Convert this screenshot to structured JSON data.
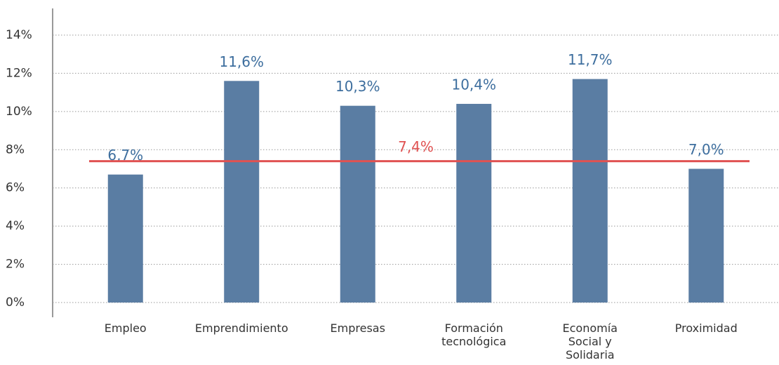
{
  "chart_data": {
    "type": "bar",
    "categories": [
      "Empleo",
      "Emprendimiento",
      "Empresas",
      "Formación tecnológica",
      "Economía Social y Solidaria",
      "Proximidad"
    ],
    "values": [
      6.7,
      11.6,
      10.3,
      10.4,
      11.7,
      7.0
    ],
    "value_labels": [
      "6,7%",
      "11,6%",
      "10,3%",
      "10,4%",
      "11,7%",
      "7,0%"
    ],
    "color": "#5a7da3",
    "reference_line": {
      "value": 7.4,
      "label": "7,4%",
      "color": "#e05252"
    },
    "ylim": [
      0,
      14
    ],
    "yticks": [
      {
        "value": 0,
        "label": "0%"
      },
      {
        "value": 2,
        "label": "2%"
      },
      {
        "value": 4,
        "label": "4%"
      },
      {
        "value": 6,
        "label": "6%"
      },
      {
        "value": 8,
        "label": "8%"
      },
      {
        "value": 10,
        "label": "10%"
      },
      {
        "value": 12,
        "label": "12%"
      },
      {
        "value": 14,
        "label": "14%"
      }
    ],
    "grid": true
  }
}
